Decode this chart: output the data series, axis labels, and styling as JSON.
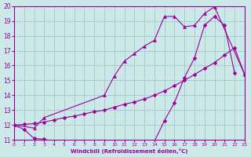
{
  "xlabel": "Windchill (Refroidissement éolien,°C)",
  "bg_color": "#cce8e8",
  "grid_color": "#aacccc",
  "line_color": "#990099",
  "xlim": [
    0,
    23
  ],
  "ylim": [
    11,
    20
  ],
  "xticks": [
    0,
    1,
    2,
    3,
    4,
    5,
    6,
    7,
    8,
    9,
    10,
    11,
    12,
    13,
    14,
    15,
    16,
    17,
    18,
    19,
    20,
    21,
    22,
    23
  ],
  "yticks": [
    11,
    12,
    13,
    14,
    15,
    16,
    17,
    18,
    19,
    20
  ],
  "curve1_x": [
    0,
    1,
    2,
    3,
    4,
    5,
    6,
    7,
    8,
    9,
    10,
    11,
    12,
    13,
    14,
    15,
    16,
    17,
    18,
    19,
    20,
    21,
    22
  ],
  "curve1_y": [
    12.0,
    11.7,
    11.1,
    11.05,
    10.85,
    10.85,
    10.85,
    10.85,
    10.85,
    10.85,
    10.85,
    10.85,
    10.85,
    10.85,
    10.9,
    12.3,
    13.5,
    15.2,
    16.5,
    18.7,
    19.3,
    18.7,
    15.5
  ],
  "curve2_x": [
    0,
    1,
    2,
    3,
    4,
    5,
    6,
    7,
    8,
    9,
    10,
    11,
    12,
    13,
    14,
    15,
    16,
    17,
    18,
    19,
    20,
    21,
    22,
    23
  ],
  "curve2_y": [
    12.0,
    12.05,
    12.1,
    12.2,
    12.35,
    12.5,
    12.6,
    12.75,
    12.9,
    13.0,
    13.2,
    13.4,
    13.55,
    13.75,
    14.0,
    14.3,
    14.65,
    15.0,
    15.4,
    15.8,
    16.2,
    16.7,
    17.2,
    15.4
  ],
  "curve3_x": [
    0,
    2,
    3,
    9,
    10,
    11,
    12,
    13,
    14,
    15,
    16,
    17,
    18,
    19,
    20,
    23
  ],
  "curve3_y": [
    12.0,
    11.8,
    12.5,
    14.0,
    15.3,
    16.3,
    16.8,
    17.3,
    17.7,
    19.3,
    19.3,
    18.6,
    18.7,
    19.5,
    19.95,
    15.4
  ]
}
